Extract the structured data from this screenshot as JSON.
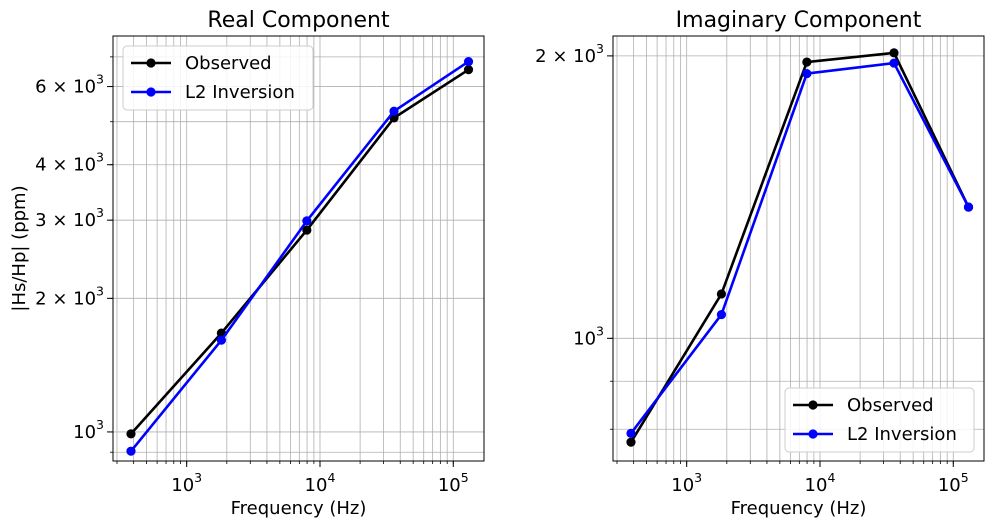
{
  "chart_data": [
    {
      "type": "line",
      "title": "Real Component",
      "xlabel": "Frequency (Hz)",
      "ylabel": "|Hs/Hp| (ppm)",
      "xscale": "log",
      "yscale": "log",
      "xlim": [
        280,
        170000
      ],
      "ylim": [
        860,
        7800
      ],
      "grid": true,
      "legend_position": "top-left",
      "xticks": [
        {
          "base": "10",
          "exp": "3",
          "value": 1000
        },
        {
          "base": "10",
          "exp": "4",
          "value": 10000
        },
        {
          "base": "10",
          "exp": "5",
          "value": 100000
        }
      ],
      "yticks": [
        {
          "label": "10",
          "exp": "3",
          "value": 1000
        },
        {
          "label": "2 × 10",
          "exp": "3",
          "value": 2000
        },
        {
          "label": "3 × 10",
          "exp": "3",
          "value": 3000
        },
        {
          "label": "4 × 10",
          "exp": "3",
          "value": 4000
        },
        {
          "label": "6 × 10",
          "exp": "3",
          "value": 6000
        }
      ],
      "x": [
        382,
        1822,
        7970,
        35920,
        130100
      ],
      "series": [
        {
          "name": "Observed",
          "color": "#000000",
          "values": [
            990,
            1670,
            2850,
            5100,
            6550
          ]
        },
        {
          "name": "L2 Inversion",
          "color": "#0000ff",
          "values": [
            905,
            1610,
            2990,
            5280,
            6830
          ]
        }
      ]
    },
    {
      "type": "line",
      "title": "Imaginary Component",
      "xlabel": "Frequency (Hz)",
      "ylabel": "",
      "xscale": "log",
      "yscale": "log",
      "xlim": [
        280,
        170000
      ],
      "ylim": [
        740,
        2100
      ],
      "grid": true,
      "legend_position": "bottom-right",
      "xticks": [
        {
          "base": "10",
          "exp": "3",
          "value": 1000
        },
        {
          "base": "10",
          "exp": "4",
          "value": 10000
        },
        {
          "base": "10",
          "exp": "5",
          "value": 100000
        }
      ],
      "yticks": [
        {
          "label": "10",
          "exp": "3",
          "value": 1000
        },
        {
          "label": "2 × 10",
          "exp": "3",
          "value": 2000
        }
      ],
      "x": [
        382,
        1822,
        7970,
        35920,
        130100
      ],
      "series": [
        {
          "name": "Observed",
          "color": "#000000",
          "values": [
            775,
            1115,
            1970,
            2015,
            1380
          ]
        },
        {
          "name": "L2 Inversion",
          "color": "#0000ff",
          "values": [
            792,
            1060,
            1915,
            1965,
            1380
          ]
        }
      ]
    }
  ]
}
